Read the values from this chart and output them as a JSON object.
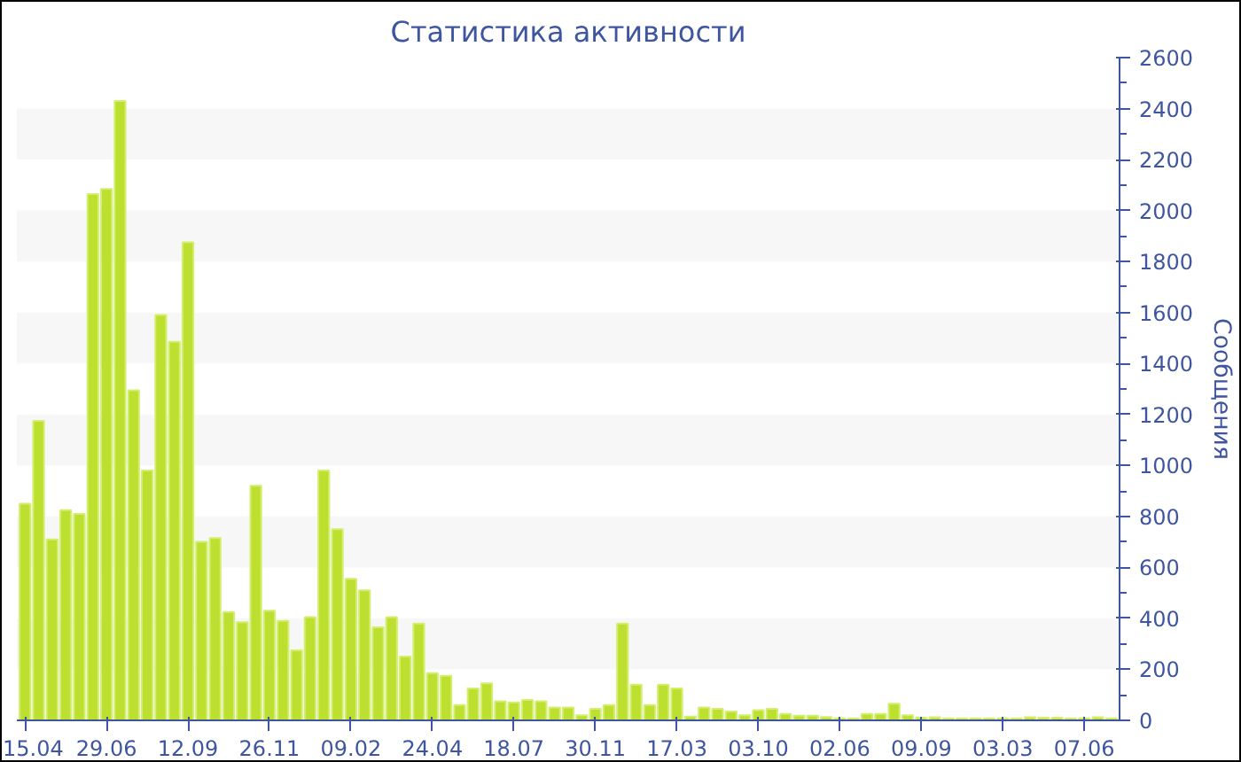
{
  "chart_data": {
    "type": "bar",
    "title": "Статистика активности",
    "ylabel": "Сообщения",
    "categories": [
      "15.04",
      null,
      null,
      null,
      null,
      null,
      "29.06",
      null,
      null,
      null,
      null,
      null,
      "12.09",
      null,
      null,
      null,
      null,
      null,
      "26.11",
      null,
      null,
      null,
      null,
      null,
      "09.02",
      null,
      null,
      null,
      null,
      null,
      "24.04",
      null,
      null,
      null,
      null,
      null,
      "18.07",
      null,
      null,
      null,
      null,
      null,
      "30.11",
      null,
      null,
      null,
      null,
      null,
      "17.03",
      null,
      null,
      null,
      null,
      null,
      "03.10",
      null,
      null,
      null,
      null,
      null,
      "02.06",
      null,
      null,
      null,
      null,
      null,
      "09.09",
      null,
      null,
      null,
      null,
      null,
      "03.03",
      null,
      null,
      null,
      null,
      null,
      "07.06",
      null,
      null
    ],
    "values": [
      850,
      1175,
      710,
      825,
      810,
      2065,
      2085,
      2430,
      1295,
      980,
      1590,
      1485,
      1875,
      700,
      715,
      425,
      385,
      920,
      430,
      390,
      275,
      405,
      980,
      750,
      555,
      510,
      365,
      405,
      250,
      380,
      185,
      175,
      60,
      125,
      145,
      75,
      70,
      80,
      75,
      50,
      50,
      20,
      45,
      60,
      380,
      140,
      60,
      140,
      125,
      15,
      50,
      45,
      35,
      20,
      40,
      45,
      25,
      18,
      18,
      13,
      8,
      8,
      25,
      25,
      65,
      20,
      10,
      12,
      8,
      8,
      8,
      8,
      8,
      8,
      12,
      10,
      10,
      8,
      8,
      12,
      8
    ],
    "color": "#bde030",
    "ylim": [
      0,
      2600
    ],
    "yticks": [
      0,
      200,
      400,
      600,
      800,
      1000,
      1200,
      1400,
      1600,
      1800,
      2000,
      2200,
      2400,
      2600
    ],
    "bands": [
      {
        "axis": "y",
        "from": 200,
        "to": 400,
        "color": "#f7f7f7"
      },
      {
        "axis": "y",
        "from": 600,
        "to": 800,
        "color": "#f7f7f7"
      },
      {
        "axis": "y",
        "from": 1000,
        "to": 1200,
        "color": "#f7f7f7"
      },
      {
        "axis": "y",
        "from": 1400,
        "to": 1600,
        "color": "#f7f7f7"
      },
      {
        "axis": "y",
        "from": 1800,
        "to": 2000,
        "color": "#f7f7f7"
      },
      {
        "axis": "y",
        "from": 2200,
        "to": 2400,
        "color": "#f7f7f7"
      }
    ]
  }
}
